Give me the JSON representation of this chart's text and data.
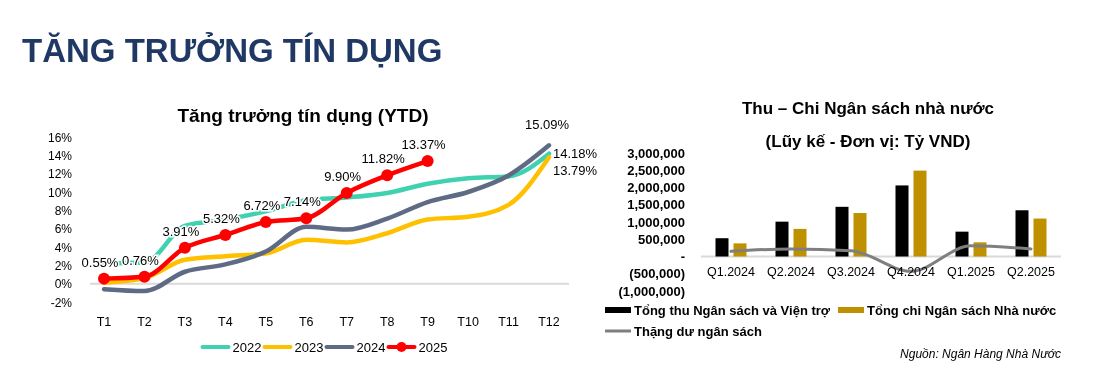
{
  "chart_data": [
    {
      "type": "other",
      "title": "TĂNG TRƯỞNG TÍN DỤNG"
    },
    {
      "type": "line",
      "title": "Tăng trưởng tín dụng (YTD)",
      "categories": [
        "T1",
        "T2",
        "T3",
        "T4",
        "T5",
        "T6",
        "T7",
        "T8",
        "T9",
        "T10",
        "T11",
        "T12"
      ],
      "ylim": [
        -2,
        16
      ],
      "yticks": [
        {
          "value": -2,
          "label": "-2%"
        },
        {
          "value": 0,
          "label": "0%"
        },
        {
          "value": 2,
          "label": "2%"
        },
        {
          "value": 4,
          "label": "4%"
        },
        {
          "value": 6,
          "label": "6%"
        },
        {
          "value": 8,
          "label": "8%"
        },
        {
          "value": 10,
          "label": "10%"
        },
        {
          "value": 12,
          "label": "12%"
        },
        {
          "value": 14,
          "label": "14%"
        },
        {
          "value": 16,
          "label": "16%"
        }
      ],
      "legend": "bottom",
      "series": [
        {
          "name": "2022",
          "color": "#40d2b0",
          "values": [
            2.2,
            2.3,
            6.3,
            7.0,
            7.9,
            9.1,
            9.4,
            9.9,
            10.9,
            11.5,
            11.7,
            14.18
          ],
          "value_labels": [
            null,
            null,
            null,
            null,
            null,
            null,
            null,
            null,
            null,
            null,
            null,
            "14.18%"
          ]
        },
        {
          "name": "2023",
          "color": "#ffc000",
          "values": [
            0.1,
            0.6,
            2.6,
            3.0,
            3.3,
            4.8,
            4.5,
            5.5,
            7.0,
            7.3,
            8.6,
            13.79
          ],
          "value_labels": [
            null,
            null,
            null,
            null,
            null,
            null,
            null,
            null,
            null,
            null,
            null,
            "13.79%"
          ]
        },
        {
          "name": "2024",
          "color": "#5f6b85",
          "values": [
            -0.6,
            -0.8,
            1.3,
            2.1,
            3.5,
            6.2,
            5.9,
            7.1,
            8.9,
            10.0,
            11.8,
            15.09
          ],
          "value_labels": [
            null,
            null,
            null,
            null,
            null,
            null,
            null,
            null,
            null,
            null,
            null,
            "15.09%"
          ]
        },
        {
          "name": "2025",
          "color": "#ff0000",
          "marker": "circle",
          "values": [
            0.55,
            0.76,
            3.91,
            5.32,
            6.72,
            7.14,
            9.9,
            11.82,
            13.37,
            null,
            null,
            null
          ],
          "value_labels": [
            "0.55%",
            "0.76%",
            "3.91%",
            "5.32%",
            "6.72%",
            "7.14%",
            "9.90%",
            "11.82%",
            "13.37%",
            null,
            null,
            null
          ]
        }
      ]
    },
    {
      "type": "bar",
      "title": "Thu – Chi Ngân sách nhà nước",
      "subtitle": "(Lũy kế - Đơn vị: Tỷ VND)",
      "categories": [
        "Q1.2024",
        "Q2.2024",
        "Q3.2024",
        "Q4.2024",
        "Q1.2025",
        "Q2.2025"
      ],
      "ylim": [
        -1000000,
        3000000
      ],
      "yticks": [
        {
          "value": -1000000,
          "label": "(1,000,000)"
        },
        {
          "value": -500000,
          "label": "(500,000)"
        },
        {
          "value": 0,
          "label": "-"
        },
        {
          "value": 500000,
          "label": "500,000"
        },
        {
          "value": 1000000,
          "label": "1,000,000"
        },
        {
          "value": 1500000,
          "label": "1,500,000"
        },
        {
          "value": 2000000,
          "label": "2,000,000"
        },
        {
          "value": 2500000,
          "label": "2,500,000"
        },
        {
          "value": 3000000,
          "label": "3,000,000"
        }
      ],
      "legend": "bottom",
      "annotations": [
        "Nguồn: Ngân Hàng Nhà Nước"
      ],
      "series": [
        {
          "name": "Tổng thu Ngân sách và Viện trợ",
          "color": "#000000",
          "values": [
            530000,
            1010000,
            1440000,
            2060000,
            720000,
            1340000
          ]
        },
        {
          "name": "Tổng chi Ngân sách Nhà nước",
          "color": "#bf9000",
          "values": [
            380000,
            800000,
            1260000,
            2490000,
            410000,
            1100000
          ]
        },
        {
          "name": "Thặng dư ngân sách",
          "type": "line",
          "color": "#7f7f7f",
          "values": [
            150000,
            220000,
            170000,
            -430000,
            310000,
            220000
          ]
        }
      ]
    }
  ]
}
